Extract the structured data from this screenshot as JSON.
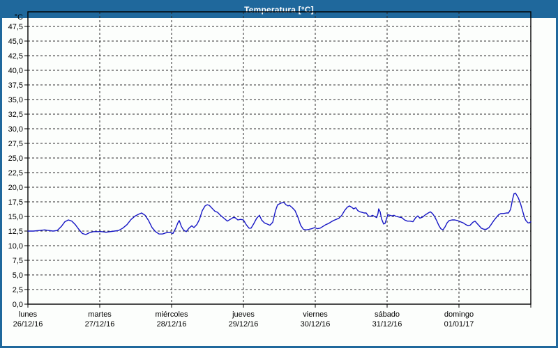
{
  "window": {
    "title": "Temperatura [°C]"
  },
  "theme": {
    "titlebar_color": "#1f689c",
    "frame_border_color": "#1f689c",
    "background": "#fcfefc",
    "plot_background": "#fdfffd",
    "axis_color": "#000000",
    "grid_color": "#2b2b2b",
    "text_color": "#000000",
    "line_color": "#1515c4"
  },
  "chart_data": {
    "type": "line",
    "title": "Temperatura [°C]",
    "ylabel": "°C",
    "xlabel": "",
    "legend": "none",
    "grid": "dashed-both-axes",
    "y_axis": {
      "min": 0,
      "max": 50,
      "tick_step": 2.5,
      "tick_labels": [
        {
          "value": 0,
          "label": "0,0"
        },
        {
          "value": 2.5,
          "label": "2,5"
        },
        {
          "value": 5,
          "label": "5,0"
        },
        {
          "value": 7.5,
          "label": "7,5"
        },
        {
          "value": 10,
          "label": "10,0"
        },
        {
          "value": 12.5,
          "label": "12,5"
        },
        {
          "value": 15,
          "label": "15,0"
        },
        {
          "value": 17.5,
          "label": "17,5"
        },
        {
          "value": 20,
          "label": "20,0"
        },
        {
          "value": 22.5,
          "label": "22,5"
        },
        {
          "value": 25,
          "label": "25,0"
        },
        {
          "value": 27.5,
          "label": "27,5"
        },
        {
          "value": 30,
          "label": "30,0"
        },
        {
          "value": 32.5,
          "label": "32,5"
        },
        {
          "value": 35,
          "label": "35,0"
        },
        {
          "value": 37.5,
          "label": "37,5"
        },
        {
          "value": 40,
          "label": "40,0"
        },
        {
          "value": 42.5,
          "label": "42,5"
        },
        {
          "value": 45,
          "label": "45,0"
        },
        {
          "value": 47.5,
          "label": "47,5"
        }
      ]
    },
    "x_axis": {
      "span_days": 7,
      "days": [
        {
          "name": "lunes",
          "date": "26/12/16"
        },
        {
          "name": "martes",
          "date": "27/12/16"
        },
        {
          "name": "miércoles",
          "date": "28/12/16"
        },
        {
          "name": "jueves",
          "date": "29/12/16"
        },
        {
          "name": "viernes",
          "date": "30/12/16"
        },
        {
          "name": "sábado",
          "date": "31/12/16"
        },
        {
          "name": "domingo",
          "date": "01/01/17"
        }
      ]
    },
    "series": [
      {
        "name": "Temperatura",
        "color": "#1515c4",
        "points": [
          [
            0.0,
            12.5
          ],
          [
            0.078,
            12.5
          ],
          [
            0.155,
            12.6
          ],
          [
            0.233,
            12.7
          ],
          [
            0.291,
            12.6
          ],
          [
            0.35,
            12.5
          ],
          [
            0.408,
            12.6
          ],
          [
            0.466,
            13.3
          ],
          [
            0.515,
            14.1
          ],
          [
            0.563,
            14.4
          ],
          [
            0.612,
            14.2
          ],
          [
            0.66,
            13.6
          ],
          [
            0.709,
            12.8
          ],
          [
            0.757,
            12.1
          ],
          [
            0.806,
            11.9
          ],
          [
            0.854,
            12.2
          ],
          [
            0.913,
            12.4
          ],
          [
            0.971,
            12.4
          ],
          [
            1.029,
            12.4
          ],
          [
            1.087,
            12.3
          ],
          [
            1.146,
            12.4
          ],
          [
            1.204,
            12.5
          ],
          [
            1.262,
            12.6
          ],
          [
            1.32,
            13.0
          ],
          [
            1.379,
            13.6
          ],
          [
            1.437,
            14.5
          ],
          [
            1.495,
            15.1
          ],
          [
            1.544,
            15.4
          ],
          [
            1.583,
            15.6
          ],
          [
            1.631,
            15.2
          ],
          [
            1.68,
            14.3
          ],
          [
            1.728,
            13.1
          ],
          [
            1.777,
            12.4
          ],
          [
            1.825,
            12.0
          ],
          [
            1.874,
            12.0
          ],
          [
            1.922,
            12.2
          ],
          [
            1.971,
            12.3
          ],
          [
            2.019,
            12.1
          ],
          [
            2.058,
            13.0
          ],
          [
            2.087,
            13.9
          ],
          [
            2.107,
            14.3
          ],
          [
            2.136,
            13.3
          ],
          [
            2.165,
            12.7
          ],
          [
            2.204,
            12.4
          ],
          [
            2.243,
            13.0
          ],
          [
            2.282,
            13.4
          ],
          [
            2.311,
            13.1
          ],
          [
            2.35,
            13.6
          ],
          [
            2.388,
            14.5
          ],
          [
            2.427,
            16.0
          ],
          [
            2.466,
            16.8
          ],
          [
            2.495,
            17.0
          ],
          [
            2.524,
            16.9
          ],
          [
            2.563,
            16.4
          ],
          [
            2.602,
            15.9
          ],
          [
            2.641,
            15.7
          ],
          [
            2.68,
            15.2
          ],
          [
            2.728,
            14.7
          ],
          [
            2.777,
            14.2
          ],
          [
            2.816,
            14.5
          ],
          [
            2.854,
            14.8
          ],
          [
            2.883,
            14.8
          ],
          [
            2.922,
            14.4
          ],
          [
            2.961,
            14.5
          ],
          [
            3.0,
            14.4
          ],
          [
            3.039,
            13.6
          ],
          [
            3.078,
            13.0
          ],
          [
            3.107,
            13.0
          ],
          [
            3.146,
            13.8
          ],
          [
            3.184,
            14.7
          ],
          [
            3.223,
            15.2
          ],
          [
            3.252,
            14.4
          ],
          [
            3.291,
            13.9
          ],
          [
            3.33,
            13.7
          ],
          [
            3.369,
            13.5
          ],
          [
            3.408,
            14.0
          ],
          [
            3.447,
            16.0
          ],
          [
            3.476,
            17.0
          ],
          [
            3.524,
            17.3
          ],
          [
            3.563,
            17.4
          ],
          [
            3.592,
            17.0
          ],
          [
            3.621,
            16.8
          ],
          [
            3.641,
            16.9
          ],
          [
            3.68,
            16.5
          ],
          [
            3.718,
            16.0
          ],
          [
            3.757,
            14.9
          ],
          [
            3.796,
            13.5
          ],
          [
            3.835,
            12.8
          ],
          [
            3.874,
            12.7
          ],
          [
            3.913,
            12.8
          ],
          [
            3.951,
            12.9
          ],
          [
            3.99,
            13.1
          ],
          [
            4.029,
            12.9
          ],
          [
            4.068,
            13.0
          ],
          [
            4.107,
            13.3
          ],
          [
            4.146,
            13.6
          ],
          [
            4.184,
            13.8
          ],
          [
            4.223,
            14.1
          ],
          [
            4.252,
            14.3
          ],
          [
            4.291,
            14.5
          ],
          [
            4.33,
            14.7
          ],
          [
            4.369,
            15.2
          ],
          [
            4.408,
            16.0
          ],
          [
            4.447,
            16.6
          ],
          [
            4.476,
            16.8
          ],
          [
            4.505,
            16.6
          ],
          [
            4.534,
            16.3
          ],
          [
            4.563,
            16.5
          ],
          [
            4.592,
            16.0
          ],
          [
            4.621,
            15.8
          ],
          [
            4.65,
            15.7
          ],
          [
            4.68,
            15.6
          ],
          [
            4.709,
            15.6
          ],
          [
            4.738,
            15.1
          ],
          [
            4.767,
            15.0
          ],
          [
            4.796,
            15.2
          ],
          [
            4.825,
            15.0
          ],
          [
            4.854,
            14.8
          ],
          [
            4.873,
            15.5
          ],
          [
            4.883,
            16.3
          ],
          [
            4.903,
            15.8
          ],
          [
            4.922,
            14.6
          ],
          [
            4.951,
            13.7
          ],
          [
            4.971,
            13.8
          ],
          [
            5.01,
            15.3
          ],
          [
            5.039,
            15.2
          ],
          [
            5.068,
            15.1
          ],
          [
            5.097,
            15.2
          ],
          [
            5.126,
            15.0
          ],
          [
            5.165,
            14.9
          ],
          [
            5.204,
            14.8
          ],
          [
            5.243,
            14.4
          ],
          [
            5.282,
            14.2
          ],
          [
            5.32,
            14.2
          ],
          [
            5.359,
            14.1
          ],
          [
            5.398,
            14.8
          ],
          [
            5.427,
            15.1
          ],
          [
            5.456,
            14.7
          ],
          [
            5.495,
            14.9
          ],
          [
            5.534,
            15.3
          ],
          [
            5.573,
            15.6
          ],
          [
            5.602,
            15.8
          ],
          [
            5.631,
            15.5
          ],
          [
            5.66,
            15.0
          ],
          [
            5.689,
            14.3
          ],
          [
            5.718,
            13.5
          ],
          [
            5.748,
            12.9
          ],
          [
            5.777,
            12.7
          ],
          [
            5.806,
            13.2
          ],
          [
            5.835,
            13.9
          ],
          [
            5.864,
            14.3
          ],
          [
            5.903,
            14.4
          ],
          [
            5.942,
            14.4
          ],
          [
            5.981,
            14.3
          ],
          [
            6.019,
            14.1
          ],
          [
            6.058,
            13.9
          ],
          [
            6.097,
            13.6
          ],
          [
            6.126,
            13.4
          ],
          [
            6.155,
            13.5
          ],
          [
            6.194,
            14.0
          ],
          [
            6.223,
            14.2
          ],
          [
            6.252,
            13.8
          ],
          [
            6.282,
            13.4
          ],
          [
            6.311,
            13.0
          ],
          [
            6.35,
            12.8
          ],
          [
            6.379,
            12.8
          ],
          [
            6.417,
            13.1
          ],
          [
            6.447,
            13.6
          ],
          [
            6.485,
            14.3
          ],
          [
            6.524,
            14.9
          ],
          [
            6.553,
            15.3
          ],
          [
            6.583,
            15.5
          ],
          [
            6.621,
            15.5
          ],
          [
            6.66,
            15.6
          ],
          [
            6.689,
            15.6
          ],
          [
            6.718,
            16.2
          ],
          [
            6.748,
            18.0
          ],
          [
            6.767,
            18.9
          ],
          [
            6.786,
            19.0
          ],
          [
            6.806,
            18.6
          ],
          [
            6.825,
            18.2
          ],
          [
            6.854,
            17.3
          ],
          [
            6.883,
            16.1
          ],
          [
            6.913,
            14.8
          ],
          [
            6.932,
            14.3
          ],
          [
            6.961,
            13.9
          ],
          [
            6.981,
            13.9
          ],
          [
            7.0,
            14.1
          ]
        ]
      }
    ]
  }
}
